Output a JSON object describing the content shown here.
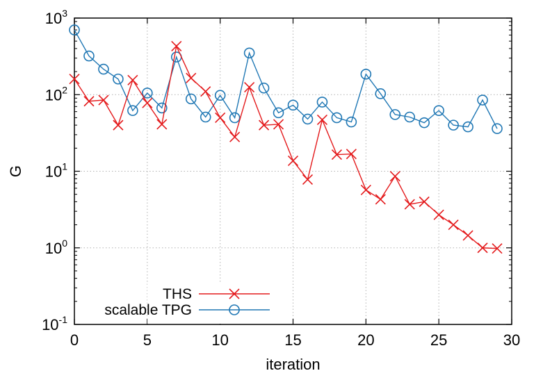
{
  "chart_data": {
    "type": "line",
    "title": "",
    "xlabel": "iteration",
    "ylabel": "G",
    "xlim": [
      0,
      30
    ],
    "ylim": [
      0.1,
      1000
    ],
    "yscale": "log",
    "grid": true,
    "legend_position": "bottom-left",
    "x_ticks": [
      0,
      5,
      10,
      15,
      20,
      25,
      30
    ],
    "y_ticks": [
      {
        "base": "10",
        "exp": "-1",
        "value": 0.1
      },
      {
        "base": "10",
        "exp": "0",
        "value": 1
      },
      {
        "base": "10",
        "exp": "1",
        "value": 10
      },
      {
        "base": "10",
        "exp": "2",
        "value": 100
      },
      {
        "base": "10",
        "exp": "3",
        "value": 1000
      }
    ],
    "x": [
      0,
      1,
      2,
      3,
      4,
      5,
      6,
      7,
      8,
      9,
      10,
      11,
      12,
      13,
      14,
      15,
      16,
      17,
      18,
      19,
      20,
      21,
      22,
      23,
      24,
      25,
      26,
      27,
      28,
      29
    ],
    "series": [
      {
        "name": "THS",
        "color": "#e41a1c",
        "marker": "cross",
        "values": [
          160,
          82,
          85,
          40,
          155,
          78,
          41,
          430,
          165,
          110,
          50,
          28,
          125,
          40,
          41,
          13.7,
          7.8,
          47,
          16.5,
          16.8,
          5.7,
          4.3,
          8.6,
          3.7,
          4.0,
          2.7,
          2.0,
          1.45,
          1.0,
          0.98
        ]
      },
      {
        "name": "scalable TPG",
        "color": "#1f77b4",
        "marker": "circle",
        "values": [
          700,
          320,
          215,
          160,
          62,
          105,
          67,
          310,
          88,
          51,
          98,
          50,
          350,
          122,
          58,
          73,
          48,
          80,
          50,
          44,
          185,
          103,
          55,
          51,
          43,
          62,
          40,
          38,
          85,
          36
        ]
      }
    ]
  }
}
